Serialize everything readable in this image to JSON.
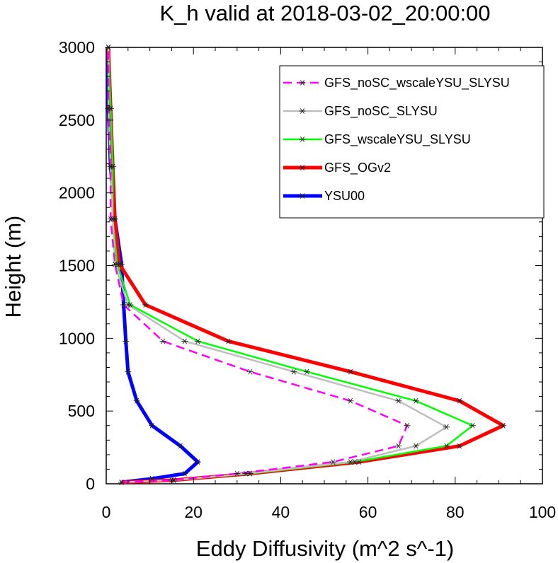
{
  "chart_data": {
    "type": "line",
    "title": "K_h valid at 2018-03-02_20:00:00",
    "xlabel": "Eddy Diffusivity (m^2 s^-1)",
    "ylabel": "Height (m)",
    "xlim": [
      0,
      100
    ],
    "ylim": [
      0,
      3000
    ],
    "xticks": [
      "0",
      "20",
      "40",
      "60",
      "80",
      "100"
    ],
    "yticks": [
      "0",
      "500",
      "1000",
      "1500",
      "2000",
      "2500",
      "3000"
    ],
    "grid": false,
    "legend_position": "top-right",
    "series": [
      {
        "name": "GFS_noSC_wscaleYSU_SLYSU",
        "color": "#ff00ff",
        "dash": "dashed",
        "points": [
          [
            3.5,
            10
          ],
          [
            15,
            25
          ],
          [
            30,
            70
          ],
          [
            52,
            150
          ],
          [
            67,
            260
          ],
          [
            69,
            400
          ],
          [
            56,
            570
          ],
          [
            33,
            770
          ],
          [
            13,
            980
          ],
          [
            4,
            1230
          ],
          [
            2,
            1510
          ],
          [
            1,
            1820
          ],
          [
            1,
            2180
          ],
          [
            0.5,
            2580
          ],
          [
            0.5,
            3000
          ]
        ]
      },
      {
        "name": "GFS_noSC_SLYSU",
        "color": "#bebebe",
        "dash": "solid",
        "points": [
          [
            3.5,
            10
          ],
          [
            15.5,
            25
          ],
          [
            32,
            70
          ],
          [
            56,
            150
          ],
          [
            71,
            260
          ],
          [
            78,
            390
          ],
          [
            67,
            570
          ],
          [
            43,
            770
          ],
          [
            18,
            980
          ],
          [
            5,
            1230
          ],
          [
            2,
            1510
          ],
          [
            1.5,
            1820
          ],
          [
            1,
            2180
          ],
          [
            0.5,
            2580
          ],
          [
            0.5,
            3000
          ]
        ]
      },
      {
        "name": "GFS_wscaleYSU_SLYSU",
        "color": "#00ff00",
        "dash": "solid",
        "points": [
          [
            3.5,
            10
          ],
          [
            15.5,
            25
          ],
          [
            33,
            70
          ],
          [
            57,
            150
          ],
          [
            78,
            260
          ],
          [
            84,
            400
          ],
          [
            71,
            570
          ],
          [
            46,
            770
          ],
          [
            21,
            980
          ],
          [
            5.5,
            1230
          ],
          [
            2.5,
            1510
          ],
          [
            1.5,
            1820
          ],
          [
            1.5,
            2180
          ],
          [
            1,
            2580
          ],
          [
            0.5,
            3000
          ]
        ]
      },
      {
        "name": "GFS_OGv2",
        "color": "#ff0000",
        "dash": "solid",
        "points": [
          [
            3.5,
            10
          ],
          [
            15.5,
            25
          ],
          [
            33,
            70
          ],
          [
            58,
            150
          ],
          [
            81,
            260
          ],
          [
            91,
            400
          ],
          [
            81,
            570
          ],
          [
            56,
            770
          ],
          [
            28,
            980
          ],
          [
            9,
            1230
          ],
          [
            3,
            1510
          ],
          [
            2,
            1820
          ],
          [
            1.5,
            2180
          ],
          [
            1,
            2580
          ],
          [
            0.5,
            3000
          ]
        ]
      },
      {
        "name": "YSU00",
        "color": "#0000ff",
        "dash": "solid",
        "points": [
          [
            3.5,
            10
          ],
          [
            10.5,
            35
          ],
          [
            18,
            70
          ],
          [
            21,
            150
          ],
          [
            17,
            260
          ],
          [
            10.5,
            400
          ],
          [
            7,
            570
          ],
          [
            5,
            770
          ],
          [
            4.5,
            980
          ],
          [
            4,
            1230
          ],
          [
            3.5,
            1510
          ],
          [
            2,
            1820
          ],
          [
            1,
            2180
          ],
          [
            0.5,
            2580
          ],
          [
            0.5,
            3000
          ]
        ]
      }
    ]
  }
}
